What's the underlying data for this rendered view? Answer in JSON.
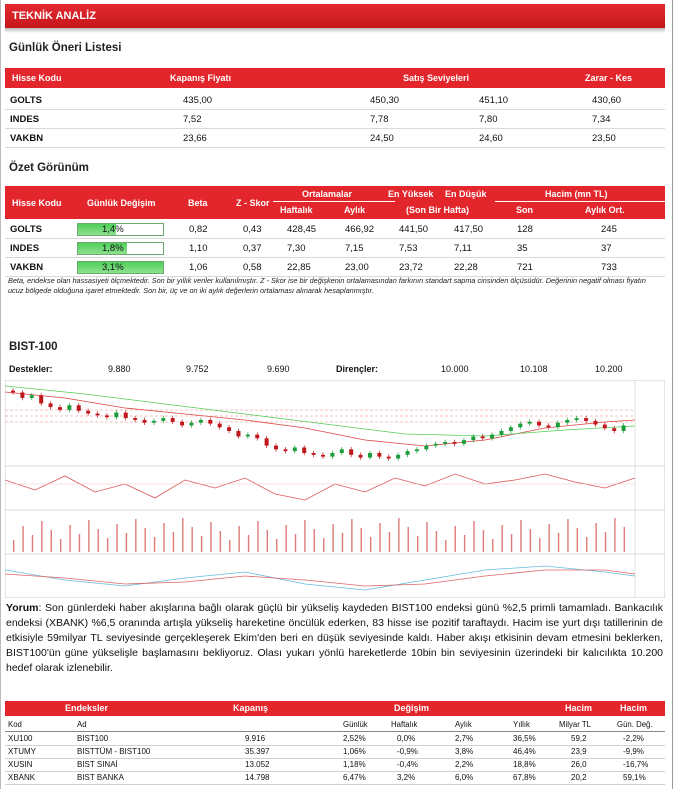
{
  "header": {
    "title": "TEKNİK ANALİZ"
  },
  "daily": {
    "title": "Günlük Öneri Listesi",
    "columns": [
      "Hisse Kodu",
      "Kapanış Fiyatı",
      "Satış Seviyeleri",
      "Zarar  - Kes"
    ],
    "rows": [
      {
        "code": "GOLTS",
        "close": "435,00",
        "s1": "450,30",
        "s2": "451,10",
        "stop": "430,60"
      },
      {
        "code": "INDES",
        "close": "7,52",
        "s1": "7,78",
        "s2": "7,80",
        "stop": "7,34"
      },
      {
        "code": "VAKBN",
        "close": "23,66",
        "s1": "24,50",
        "s2": "24,60",
        "stop": "23,50"
      }
    ]
  },
  "summary": {
    "title": "Özet Görünüm",
    "headers": {
      "code": "Hisse Kodu",
      "change": "Günlük Değişim",
      "beta": "Beta",
      "z": "Z - Skor",
      "avg": "Ortalamalar",
      "weekly": "Haftalık",
      "monthly": "Aylık",
      "high": "En Yüksek",
      "low": "En Düşük",
      "hilo_sub": "(Son Bir Hafta)",
      "vol": "Hacim (mn TL)",
      "last": "Son",
      "monthly_avg": "Aylık Ort."
    },
    "rows": [
      {
        "code": "GOLTS",
        "change": "1,4%",
        "change_pct": 1.4,
        "beta": "0,82",
        "z": "0,43",
        "weekly": "428,45",
        "monthly": "466,92",
        "high": "441,50",
        "low": "417,50",
        "last": "128",
        "avg": "245"
      },
      {
        "code": "INDES",
        "change": "1,8%",
        "change_pct": 1.8,
        "beta": "1,10",
        "z": "0,37",
        "weekly": "7,30",
        "monthly": "7,15",
        "high": "7,53",
        "low": "7,11",
        "last": "35",
        "avg": "37"
      },
      {
        "code": "VAKBN",
        "change": "3,1%",
        "change_pct": 3.1,
        "beta": "1,06",
        "z": "0,58",
        "weekly": "22,85",
        "monthly": "23,00",
        "high": "23,72",
        "low": "22,28",
        "last": "721",
        "avg": "733"
      }
    ],
    "note": "Beta, endekse olan hassasiyeti ölçmektedir. Son bir yıllık veriler kullanılmıştır. Z - Skor ise bir değişkenin ortalamasından farkının standart sapma cinsinden ölçüsüdür. Değerinin negatif olması fiyatın ucuz bölgede olduğuna işaret etmektedir. Son bir, üç ve on iki aylık değerlerin ortalaması alınarak hesaplanmıştır."
  },
  "bist": {
    "title": "BIST-100",
    "supports_label": "Destekler:",
    "supports": [
      "9.880",
      "9.752",
      "9.690"
    ],
    "resistances_label": "Dirençler:",
    "resistances": [
      "10.000",
      "10.108",
      "10.200"
    ]
  },
  "colors": {
    "red": "#e3262c",
    "green": "#1a9c3a",
    "candle_red": "#c0171c"
  },
  "chart_data": {
    "type": "candlestick",
    "series": [
      {
        "values": [
          10180,
          10120,
          10150,
          10060,
          10020,
          9990,
          10040,
          9980,
          9950,
          9930,
          9910,
          9960,
          9900,
          9880,
          9850,
          9870,
          9900,
          9860,
          9820,
          9850,
          9880,
          9840,
          9800,
          9760,
          9700,
          9720,
          9680,
          9600,
          9560,
          9540,
          9580,
          9520,
          9500,
          9480,
          9520,
          9560,
          9500,
          9470,
          9520,
          9480,
          9460,
          9500,
          9540,
          9560,
          9600,
          9620,
          9640,
          9620,
          9660,
          9700,
          9680,
          9720,
          9760,
          9800,
          9840,
          9860,
          9820,
          9800,
          9850,
          9880,
          9900,
          9870,
          9830,
          9790,
          9760,
          9820
        ]
      }
    ]
  },
  "commentary": {
    "lead": "Yorum",
    "text": ": Son günlerdeki haber akışlarına bağlı olarak güçlü bir yükseliş kaydeden BIST100 endeksi günü %2,5 primli tamamladı. Bankacılık endeksi (XBANK) %6,5 oranında artışla yükseliş hareketine öncülük ederken, 83 hisse ise pozitif taraftaydı. Hacim ise yurt dışı tatillerinin de etkisiyle 59milyar TL seviyesinde gerçekleşerek Ekim'den beri en düşük seviyesinde kaldı. Haber akışı etkisinin devam etmesini beklerken, BIST100'ün güne yükselişle başlamasını bekliyoruz. Olası yukarı yönlü hareketlerde 10bin bin seviyesinin üzerindeki bir kalıcılıkta 10.200 hedef olarak izlenebilir."
  },
  "indices": {
    "groups": {
      "endeksler": "Endeksler",
      "kapanis": "Kapanış",
      "degisim": "Değişim",
      "hacim1": "Hacim",
      "hacim2": "Hacim"
    },
    "columns": {
      "kod": "Kod",
      "ad": "Ad",
      "gunluk": "Günlük",
      "haftalik": "Haftalık",
      "aylik": "Aylık",
      "yillik": "Yıllık",
      "milyar": "Milyar TL",
      "gun_deg": "Gün. Değ."
    },
    "rows": [
      {
        "kod": "XU100",
        "ad": "BIST100",
        "kapanis": "9.916",
        "gunluk": "2,52%",
        "haftalik": "0,0%",
        "aylik": "2,7%",
        "yillik": "36,5%",
        "milyar": "59,2",
        "gun_deg": "-2,2%"
      },
      {
        "kod": "XTUMY",
        "ad": "BISTTÜM - BIST100",
        "kapanis": "35.397",
        "gunluk": "1,06%",
        "haftalik": "-0,9%",
        "aylik": "3,8%",
        "yillik": "46,4%",
        "milyar": "23,9",
        "gun_deg": "-9,9%"
      },
      {
        "kod": "XUSIN",
        "ad": "BIST SINAİ",
        "kapanis": "13.052",
        "gunluk": "1,18%",
        "haftalik": "-0,4%",
        "aylik": "2,2%",
        "yillik": "18,8%",
        "milyar": "26,0",
        "gun_deg": "-16,7%"
      },
      {
        "kod": "XBANK",
        "ad": "BIST BANKA",
        "kapanis": "14.798",
        "gunluk": "6,47%",
        "haftalik": "3,2%",
        "aylik": "6,0%",
        "yillik": "67,8%",
        "milyar": "20,2",
        "gun_deg": "59,1%"
      }
    ]
  }
}
